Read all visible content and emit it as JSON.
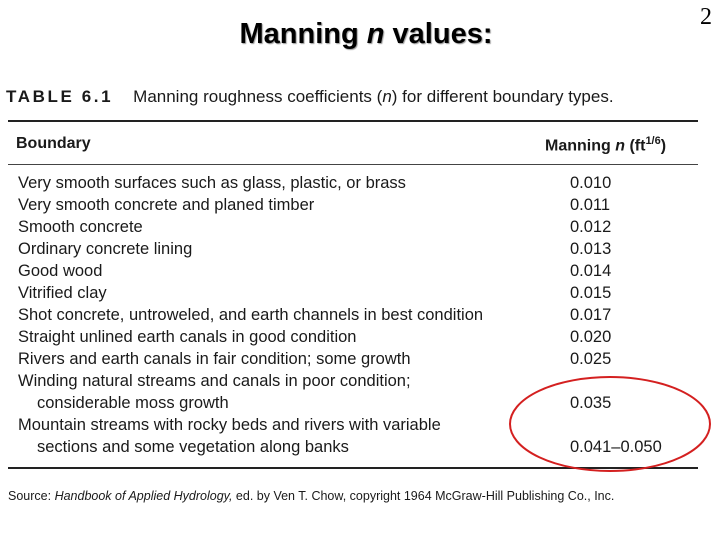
{
  "slide": {
    "number": "2",
    "title_pre": "Manning ",
    "title_italic": "n",
    "title_post": " values:"
  },
  "table": {
    "label": "TABLE 6.1",
    "caption_pre": "Manning roughness coefficients (",
    "caption_italic": "n",
    "caption_post": ") for different boundary types.",
    "header_boundary": "Boundary",
    "header_value_pre": "Manning ",
    "header_value_italic": "n",
    "header_value_unit_pre": " (ft",
    "header_value_unit_sup": "1/6",
    "header_value_unit_post": ")",
    "rows": [
      {
        "desc": "Very smooth surfaces such as glass, plastic, or brass",
        "value": "0.010"
      },
      {
        "desc": "Very smooth concrete and planed timber",
        "value": "0.011"
      },
      {
        "desc": "Smooth concrete",
        "value": "0.012"
      },
      {
        "desc": "Ordinary concrete lining",
        "value": "0.013"
      },
      {
        "desc": "Good wood",
        "value": "0.014"
      },
      {
        "desc": "Vitrified clay",
        "value": "0.015"
      },
      {
        "desc": "Shot concrete, untroweled, and earth channels in best condition",
        "value": "0.017"
      },
      {
        "desc": "Straight unlined earth canals in good condition",
        "value": "0.020"
      },
      {
        "desc": "Rivers and earth canals in fair condition; some growth",
        "value": "0.025"
      },
      {
        "desc": "Winding natural streams and canals in poor condition;",
        "desc2": "considerable moss growth",
        "value": "0.035"
      },
      {
        "desc": "Mountain streams with rocky beds and rivers with variable",
        "desc2": "sections and some vegetation along banks",
        "value": "0.041–0.050"
      }
    ]
  },
  "source": {
    "prefix": "Source: ",
    "book": "Handbook of Applied Hydrology,",
    "rest": " ed. by Ven T. Chow, copyright 1964 McGraw-Hill Publishing Co., Inc."
  },
  "annotation": {
    "color": "#d42020"
  }
}
